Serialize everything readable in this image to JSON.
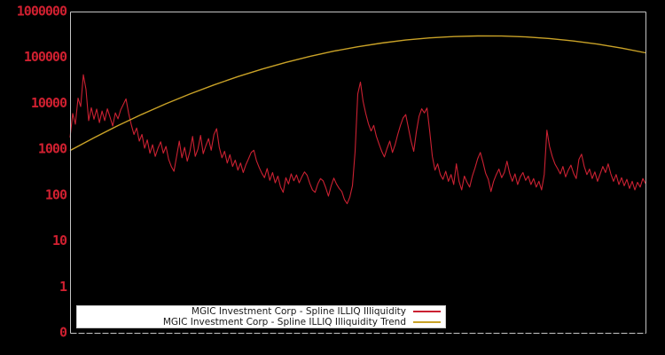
{
  "window": {
    "background": "#000000",
    "plot_border_color": "#c4c4c4"
  },
  "legend": {
    "items": [
      {
        "label": "MGIC Investment Corp - Spline ILLIQ Illiquidity",
        "color": "#cb2132"
      },
      {
        "label": "MGIC Investment Corp - Spline ILLIQ Illiquidity Trend",
        "color": "#c9a227"
      }
    ]
  },
  "chart_data": {
    "type": "line",
    "title": "",
    "xlabel": "",
    "ylabel": "",
    "yscale": "log",
    "ylim": [
      0.1,
      1000000
    ],
    "grid": false,
    "legend_position": "bottom",
    "x_axis_labels_visible": false,
    "yticks": [
      1000000,
      100000,
      10000,
      1000,
      100,
      10,
      1,
      0.1
    ],
    "ytick_labels": [
      "1000000",
      "100000",
      "10000",
      "1000",
      "100",
      "10",
      "1",
      "0"
    ],
    "ytick_color": "#cf2030",
    "series": [
      {
        "id": "illiquidity-line",
        "name": "MGIC Investment Corp - Spline ILLIQ Illiquidity",
        "color": "#cb2132",
        "values": [
          1800,
          6000,
          3500,
          13000,
          8500,
          42000,
          20000,
          4200,
          8000,
          4500,
          7500,
          3800,
          6800,
          4200,
          7600,
          5000,
          3200,
          6200,
          4600,
          7200,
          9500,
          12500,
          6000,
          3400,
          2100,
          2900,
          1500,
          2100,
          1050,
          1600,
          820,
          1250,
          700,
          1050,
          1450,
          820,
          1150,
          600,
          420,
          330,
          700,
          1500,
          650,
          1100,
          550,
          900,
          1900,
          700,
          1000,
          2000,
          800,
          1200,
          1700,
          950,
          2100,
          2800,
          1100,
          650,
          900,
          500,
          760,
          420,
          580,
          350,
          500,
          310,
          460,
          620,
          850,
          950,
          560,
          400,
          300,
          240,
          380,
          210,
          310,
          185,
          260,
          150,
          115,
          240,
          175,
          290,
          205,
          275,
          185,
          250,
          320,
          270,
          180,
          130,
          115,
          175,
          230,
          205,
          145,
          95,
          160,
          235,
          175,
          140,
          120,
          80,
          65,
          90,
          160,
          900,
          16000,
          29000,
          11000,
          6000,
          3600,
          2500,
          3300,
          1900,
          1300,
          900,
          680,
          1050,
          1500,
          850,
          1250,
          2100,
          3300,
          4800,
          5700,
          2900,
          1500,
          900,
          2400,
          5200,
          7600,
          6200,
          7900,
          2500,
          700,
          350,
          480,
          280,
          220,
          330,
          200,
          280,
          170,
          480,
          200,
          130,
          260,
          190,
          150,
          260,
          390,
          620,
          850,
          520,
          300,
          220,
          120,
          200,
          280,
          370,
          240,
          310,
          550,
          300,
          200,
          290,
          170,
          250,
          310,
          210,
          260,
          170,
          230,
          150,
          200,
          130,
          280,
          2600,
          1150,
          700,
          480,
          380,
          290,
          420,
          250,
          350,
          450,
          300,
          230,
          600,
          780,
          420,
          280,
          370,
          230,
          320,
          200,
          290,
          420,
          310,
          480,
          290,
          200,
          280,
          170,
          240,
          160,
          220,
          140,
          200,
          130,
          190,
          150,
          230,
          180
        ]
      },
      {
        "id": "trend-line",
        "name": "MGIC Investment Corp - Spline ILLIQ Illiquidity Trend",
        "color": "#c9a227",
        "values": [
          936,
          1780,
          3270,
          5770,
          9800,
          16000,
          25200,
          38200,
          55600,
          78100,
          105000,
          137000,
          171000,
          206000,
          239000,
          266000,
          285000,
          294000,
          293000,
          280000,
          258000,
          228000,
          195000,
          160000,
          126000
        ]
      }
    ]
  }
}
